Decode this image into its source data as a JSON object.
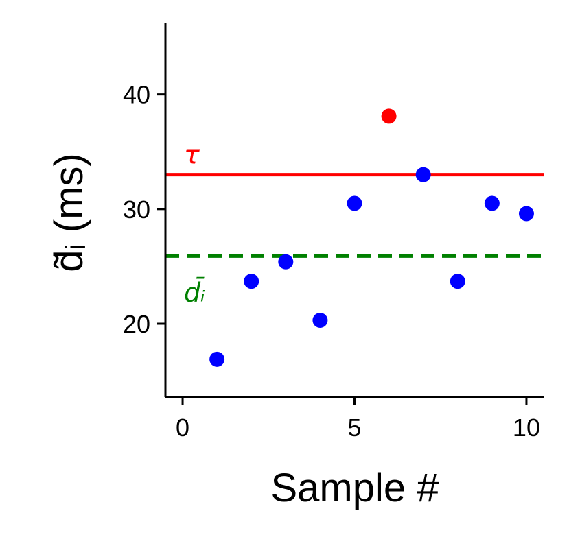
{
  "chart_data": {
    "type": "scatter",
    "xlabel": "Sample #",
    "ylabel": "d̃ᵢ (ms)",
    "xlim": [
      -0.5,
      10.5
    ],
    "ylim": [
      13.6,
      46.2
    ],
    "xticks": [
      0,
      5,
      10
    ],
    "yticks": [
      20,
      30,
      40
    ],
    "grid": false,
    "series": [
      {
        "color": "#0000ff",
        "x": [
          1,
          2,
          3,
          4,
          5,
          7,
          8,
          9,
          10
        ],
        "y": [
          16.9,
          23.7,
          25.4,
          20.3,
          30.5,
          33.0,
          23.7,
          30.5,
          29.6
        ]
      },
      {
        "color": "#ff0000",
        "x": [
          6
        ],
        "y": [
          38.1
        ]
      }
    ],
    "hlines": [
      {
        "y": 33.0,
        "label": "τ",
        "color": "#ff0000",
        "style": "solid"
      },
      {
        "y": 25.9,
        "label": "d̄ᵢ",
        "color": "#008000",
        "style": "dashed"
      }
    ]
  }
}
